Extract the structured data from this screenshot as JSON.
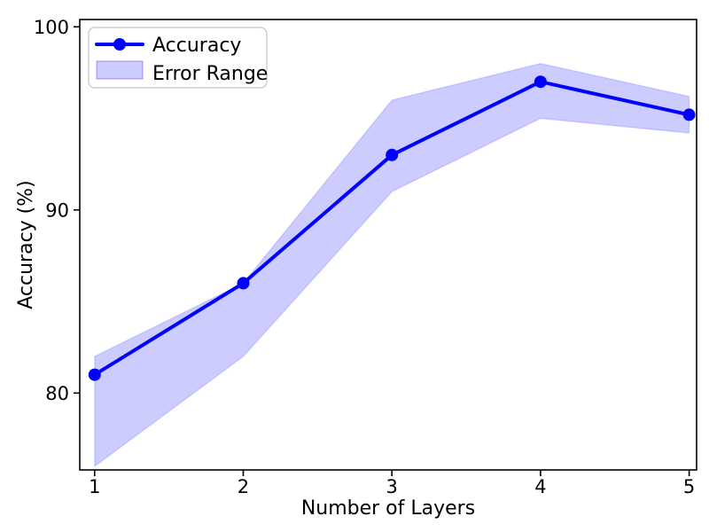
{
  "figure": {
    "background": "#ffffff"
  },
  "chart_data": {
    "type": "line",
    "title": "",
    "xlabel": "Number of Layers",
    "ylabel": "Accuracy (%)",
    "x": [
      1,
      2,
      3,
      4,
      5
    ],
    "series": [
      {
        "name": "Accuracy",
        "values": [
          81,
          86,
          93,
          97,
          95.2
        ],
        "color": "#0000ff",
        "marker": "circle",
        "line_width": 4
      }
    ],
    "band": {
      "name": "Error Range",
      "lower": [
        76,
        82,
        91,
        95,
        94.2
      ],
      "upper": [
        82,
        86,
        96,
        98,
        96.2
      ],
      "fill": "#0000ff",
      "fill_alpha": 0.2
    },
    "xticks": [
      1,
      2,
      3,
      4,
      5
    ],
    "yticks": [
      80,
      90,
      100
    ],
    "xlim": [
      0.9,
      5.05
    ],
    "ylim": [
      75.8,
      100.4
    ],
    "grid": false,
    "legend": {
      "position": "upper-left",
      "entries": [
        "Accuracy",
        "Error Range"
      ]
    },
    "axis_color": "#000000"
  }
}
